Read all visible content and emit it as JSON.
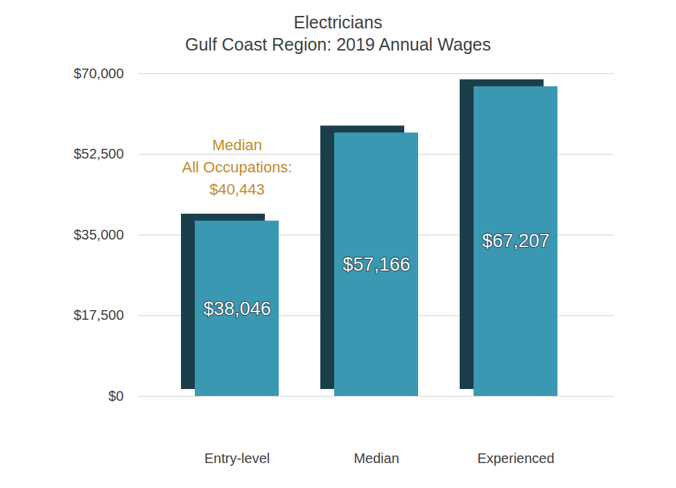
{
  "chart_data": {
    "type": "bar",
    "title": "Electricians",
    "subtitle": "Gulf Coast Region: 2019 Annual Wages",
    "categories": [
      "Entry-level",
      "Median",
      "Experienced"
    ],
    "values": [
      38046,
      57166,
      67207
    ],
    "value_labels": [
      "$38,046",
      "$57,166",
      "$67,207"
    ],
    "data_labels": true,
    "color": "#3a98b3",
    "ylim": [
      0,
      70000
    ],
    "yticks": [
      {
        "value": 0,
        "label": "$0"
      },
      {
        "value": 17500,
        "label": "$17,500"
      },
      {
        "value": 35000,
        "label": "$35,000"
      },
      {
        "value": 52500,
        "label": "$52,500"
      },
      {
        "value": 70000,
        "label": "$70,000"
      }
    ],
    "grid": true,
    "annotations": [
      {
        "text": "Median\nAll Occupations:\n$40,443"
      }
    ]
  }
}
